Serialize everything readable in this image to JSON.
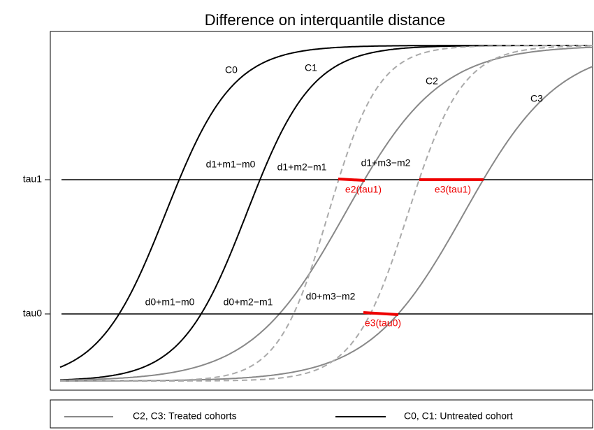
{
  "title": "Difference on interquantile distance",
  "y_labels": [
    "tau1",
    "tau0"
  ],
  "curve_labels": [
    "C0",
    "C1",
    "C2",
    "C3"
  ],
  "upper_annotations": [
    "d1+m1−m0",
    "d1+m2−m1",
    "d1+m3−m2"
  ],
  "lower_annotations": [
    "d0+m1−m0",
    "d0+m2−m1",
    "d0+m3−m2"
  ],
  "red_labels": [
    "e2(tau1)",
    "e3(tau1)",
    "e3(tau0)"
  ],
  "legend": [
    "C2, C3: Treated cohorts",
    "C0, C1: Untreated cohort"
  ]
}
